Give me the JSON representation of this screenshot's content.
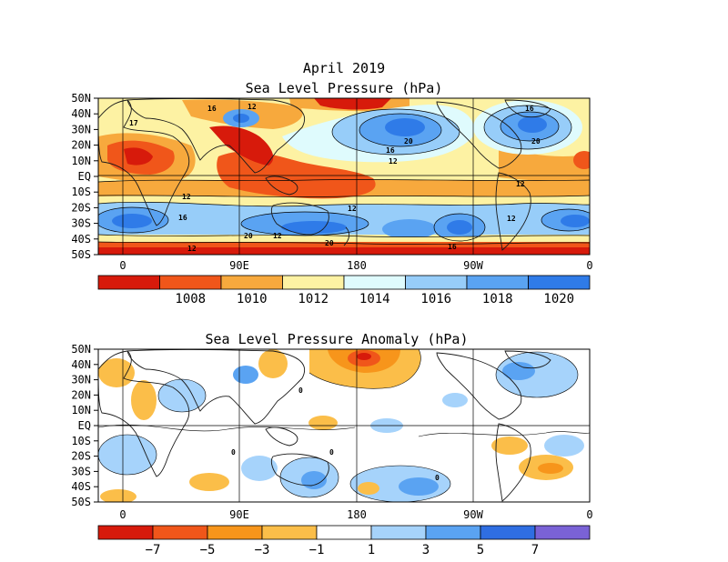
{
  "figure": {
    "title": "April 2019",
    "colors": {
      "land": "#1a1a1a",
      "grid": "#000000"
    }
  },
  "panels": [
    {
      "id": "slp",
      "title": "Sea Level Pressure (hPa)",
      "lat_labels": [
        "50N",
        "40N",
        "30N",
        "20N",
        "10N",
        "EQ",
        "10S",
        "20S",
        "30S",
        "40S",
        "50S"
      ],
      "lon_labels": [
        "0",
        "90E",
        "180",
        "90W",
        "0"
      ],
      "colorbar": {
        "labels": [
          "1008",
          "1010",
          "1012",
          "1014",
          "1016",
          "1018",
          "1020"
        ],
        "colors": [
          "#d71a0b",
          "#f0561a",
          "#f7a93d",
          "#fdf2a3",
          "#dffbfd",
          "#97cdf9",
          "#5aa3f2",
          "#2f7be8"
        ]
      },
      "contour_labels": [
        "16",
        "12",
        "17",
        "12",
        "20",
        "16",
        "12",
        "12",
        "20",
        "12",
        "16",
        "12",
        "12",
        "20",
        "16",
        "20",
        "12",
        "16"
      ]
    },
    {
      "id": "anom",
      "title": "Sea Level Pressure Anomaly (hPa)",
      "lat_labels": [
        "50N",
        "40N",
        "30N",
        "20N",
        "10N",
        "EQ",
        "10S",
        "20S",
        "30S",
        "40S",
        "50S"
      ],
      "lon_labels": [
        "0",
        "90E",
        "180",
        "90W",
        "0"
      ],
      "colorbar": {
        "labels": [
          "−7",
          "−5",
          "−3",
          "−1",
          "1",
          "3",
          "5",
          "7"
        ],
        "colors": [
          "#d71a0b",
          "#f0561a",
          "#f7951b",
          "#fbbe49",
          "#ffffff",
          "#a6d3fb",
          "#5aa3f2",
          "#2f6ee2",
          "#7a62d6"
        ]
      },
      "contour_labels": [
        "0",
        "0",
        "0",
        "0"
      ]
    }
  ]
}
